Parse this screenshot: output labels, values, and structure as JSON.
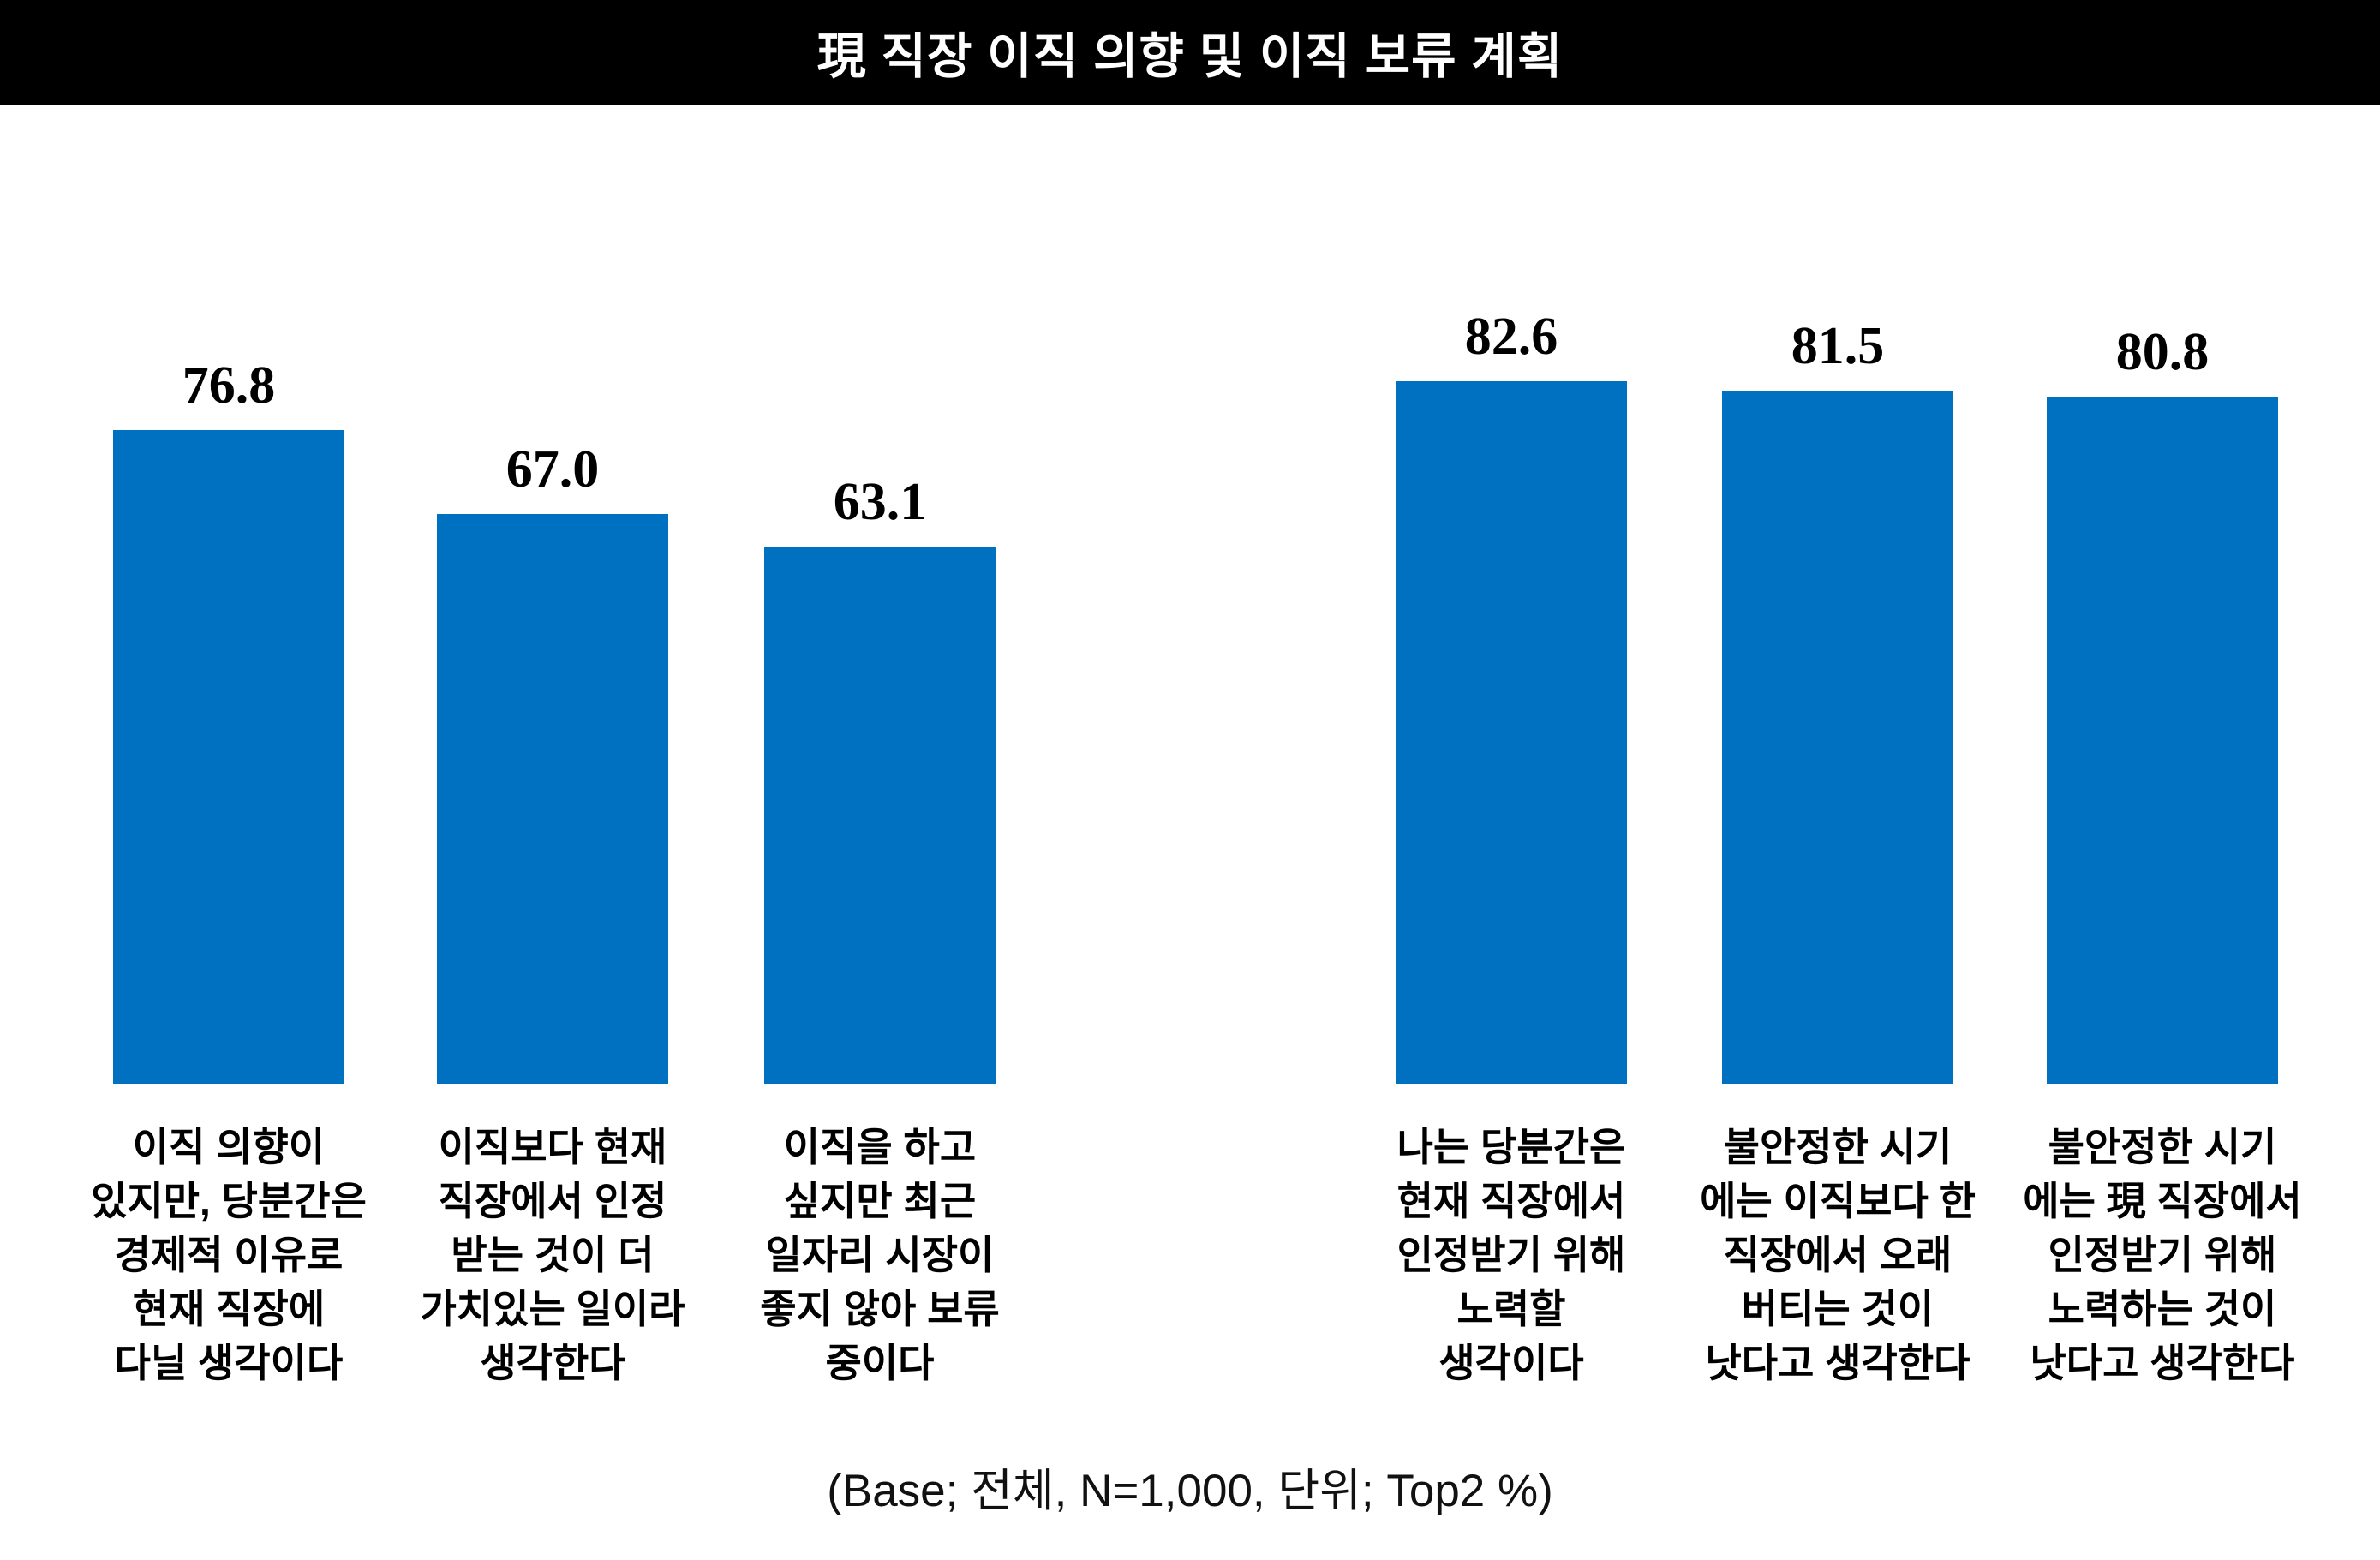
{
  "header": {
    "title": "現 직장 이직 의향 및 이직 보류 계획",
    "banner_color": "#000000",
    "title_color": "#ffffff"
  },
  "footer": {
    "base_note": "(Base; 전체, N=1,000, 단위; Top2 %)"
  },
  "chart_data": {
    "type": "bar",
    "title": "現 직장 이직 의향 및 이직 보류 계획",
    "base": "전체, N=1,000",
    "unit": "Top2 %",
    "bar_color": "#0070C0",
    "ylim": [
      0,
      100
    ],
    "grid": false,
    "legend": "none",
    "axes_visible": false,
    "group_split_index": 3,
    "categories": [
      "이직 의향이\n있지만, 당분간은\n경제적 이유로\n현재 직장에\n다닐 생각이다",
      "이직보다 현재\n직장에서 인정\n받는 것이 더\n가치있는 일이라\n생각한다",
      "이직을 하고\n싶지만 최근\n일자리 시장이\n좋지 않아 보류\n중이다",
      "나는 당분간은\n현재 직장에서\n인정받기 위해\n노력할\n생각이다",
      "불안정한 시기\n에는 이직보다 한\n직장에서 오래\n버티는 것이\n낫다고 생각한다",
      "불안정한 시기\n에는 現 직장에서\n인정받기 위해\n노력하는 것이\n낫다고 생각한다"
    ],
    "values": [
      76.8,
      67.0,
      63.1,
      82.6,
      81.5,
      80.8
    ],
    "value_labels": [
      "76.8",
      "67.0",
      "63.1",
      "82.6",
      "81.5",
      "80.8"
    ]
  }
}
